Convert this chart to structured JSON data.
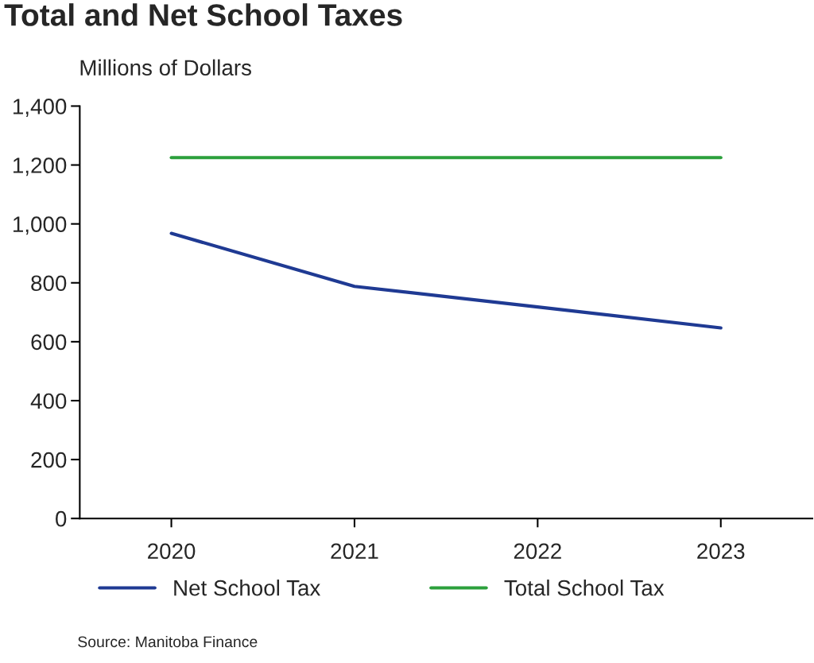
{
  "chart_data": {
    "type": "line",
    "title": "Total and Net School Taxes",
    "ylabel": "Millions of Dollars",
    "categories": [
      "2020",
      "2021",
      "2022",
      "2023"
    ],
    "series": [
      {
        "name": "Net School Tax",
        "color": "#1f3a93",
        "values": [
          968,
          788,
          718,
          647
        ]
      },
      {
        "name": "Total School Tax",
        "color": "#2ca03c",
        "values": [
          1225,
          1225,
          1225,
          1225
        ]
      }
    ],
    "ylim": [
      0,
      1400
    ],
    "yticks": [
      0,
      {
        "value": 200,
        "label": "200"
      },
      {
        "value": 400,
        "label": "400"
      },
      {
        "value": 600,
        "label": "600"
      },
      {
        "value": 800,
        "label": "800"
      },
      {
        "value": 1000,
        "label": "1,000"
      },
      {
        "value": 1200,
        "label": "1,200"
      },
      {
        "value": 1400,
        "label": "1,400"
      }
    ],
    "grid": false,
    "legend": "bottom",
    "marker": "none",
    "line_style": "solid",
    "annotations": [
      "Source: Manitoba Finance"
    ]
  }
}
